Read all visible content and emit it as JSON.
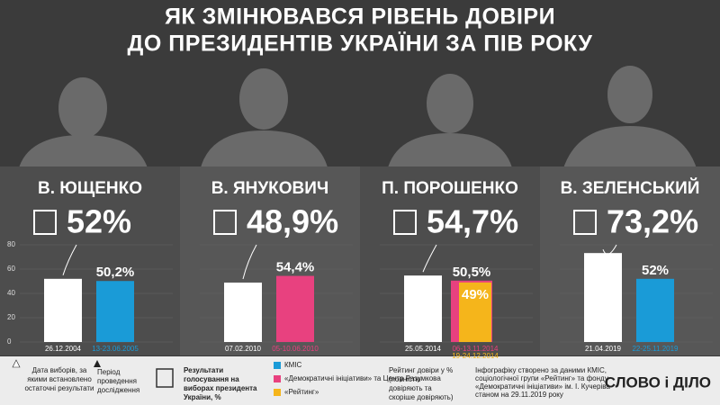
{
  "title": [
    "ЯК ЗМІНЮВАВСЯ РІВЕНЬ ДОВІРИ",
    "ДО ПРЕЗИДЕНТІВ УКРАЇНИ ЗА ПІВ РОКУ"
  ],
  "chart_data": [
    {
      "type": "bar",
      "title": "В. ЮЩЕНКО",
      "categories": [
        "26.12.2004",
        "13-23.06.2005"
      ],
      "values": [
        52,
        50.2
      ],
      "value_labels": [
        "52%",
        "50,2%"
      ],
      "colors": [
        "#ffffff",
        "#1a9bd7"
      ],
      "ylim": [
        0,
        80
      ],
      "yticks": [
        0,
        20,
        40,
        60,
        80
      ]
    },
    {
      "type": "bar",
      "title": "В. ЯНУКОВИЧ",
      "categories": [
        "07.02.2010",
        "05-10.06.2010"
      ],
      "values": [
        48.9,
        54.4
      ],
      "value_labels": [
        "48,9%",
        "54,4%"
      ],
      "colors": [
        "#ffffff",
        "#e8417f"
      ],
      "ylim": [
        0,
        80
      ],
      "yticks": [
        0,
        20,
        40,
        60,
        80
      ]
    },
    {
      "type": "bar",
      "title": "П. ПОРОШЕНКО",
      "categories": [
        "25.05.2014",
        "06-13.11.2014",
        "19-24.12.2014"
      ],
      "values": [
        54.7,
        50.5,
        49
      ],
      "value_labels": [
        "54,7%",
        "50,5%",
        "49%"
      ],
      "colors": [
        "#ffffff",
        "#e8417f",
        "#f5b51b"
      ],
      "ylim": [
        0,
        80
      ],
      "yticks": [
        0,
        20,
        40,
        60,
        80
      ]
    },
    {
      "type": "bar",
      "title": "В. ЗЕЛЕНСЬКИЙ",
      "categories": [
        "21.04.2019",
        "22-25.11.2019"
      ],
      "values": [
        73.2,
        52
      ],
      "value_labels": [
        "73,2%",
        "52%"
      ],
      "colors": [
        "#ffffff",
        "#1a9bd7"
      ],
      "ylim": [
        0,
        80
      ],
      "yticks": [
        0,
        20,
        40,
        60,
        80
      ]
    }
  ],
  "legend": {
    "election_date": [
      "Дата виборів, за",
      "якими встановлено",
      "остаточні результати"
    ],
    "period": [
      "Період",
      "проведення",
      "дослідження"
    ],
    "results": [
      "Результати",
      "голосування на",
      "виборах президента",
      "України, %"
    ],
    "series": [
      {
        "name": "КМІС",
        "color": "#1a9bd7"
      },
      {
        "name": "«Демократичні ініціативи» та Центр Разумкова",
        "color": "#e8417f"
      },
      {
        "name": "«Рейтинг»",
        "color": "#f5b51b"
      }
    ],
    "rating": [
      "Рейтинг довіри у %",
      "(повністю",
      "довіряють та",
      "скоріше довіряють)"
    ],
    "source": [
      "Інфографіку створено за даними КМІС,",
      "соціологічної групи «Рейтинг» та фонду",
      "«Демократичні ініціативи» ім. І. Кучеріва",
      "станом на 29.11.2019 року"
    ]
  },
  "brand": "СЛОВО і ДІЛО"
}
